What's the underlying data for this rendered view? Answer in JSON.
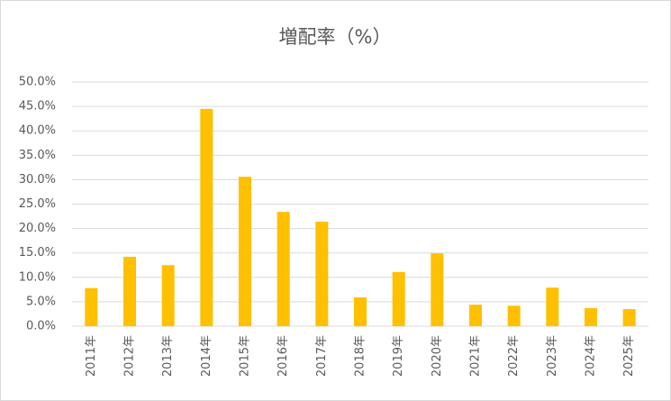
{
  "chart_data": {
    "type": "bar",
    "title": "増配率（%）",
    "categories": [
      "2011年",
      "2012年",
      "2013年",
      "2014年",
      "2015年",
      "2016年",
      "2017年",
      "2018年",
      "2019年",
      "2020年",
      "2021年",
      "2022年",
      "2023年",
      "2024年",
      "2025年"
    ],
    "values": [
      7.8,
      14.2,
      12.5,
      44.5,
      30.6,
      23.4,
      21.4,
      5.9,
      11.1,
      14.9,
      4.4,
      4.2,
      7.9,
      3.7,
      3.5
    ],
    "color": "#ffc000",
    "ylim": [
      0,
      50
    ],
    "yticks": [
      {
        "value": 0,
        "label": "0.0%"
      },
      {
        "value": 5,
        "label": "5.0%"
      },
      {
        "value": 10,
        "label": "10.0%"
      },
      {
        "value": 15,
        "label": "15.0%"
      },
      {
        "value": 20,
        "label": "20.0%"
      },
      {
        "value": 25,
        "label": "25.0%"
      },
      {
        "value": 30,
        "label": "30.0%"
      },
      {
        "value": 35,
        "label": "35.0%"
      },
      {
        "value": 40,
        "label": "40.0%"
      },
      {
        "value": 45,
        "label": "45.0%"
      },
      {
        "value": 50,
        "label": "50.0%"
      }
    ],
    "grid": true
  }
}
